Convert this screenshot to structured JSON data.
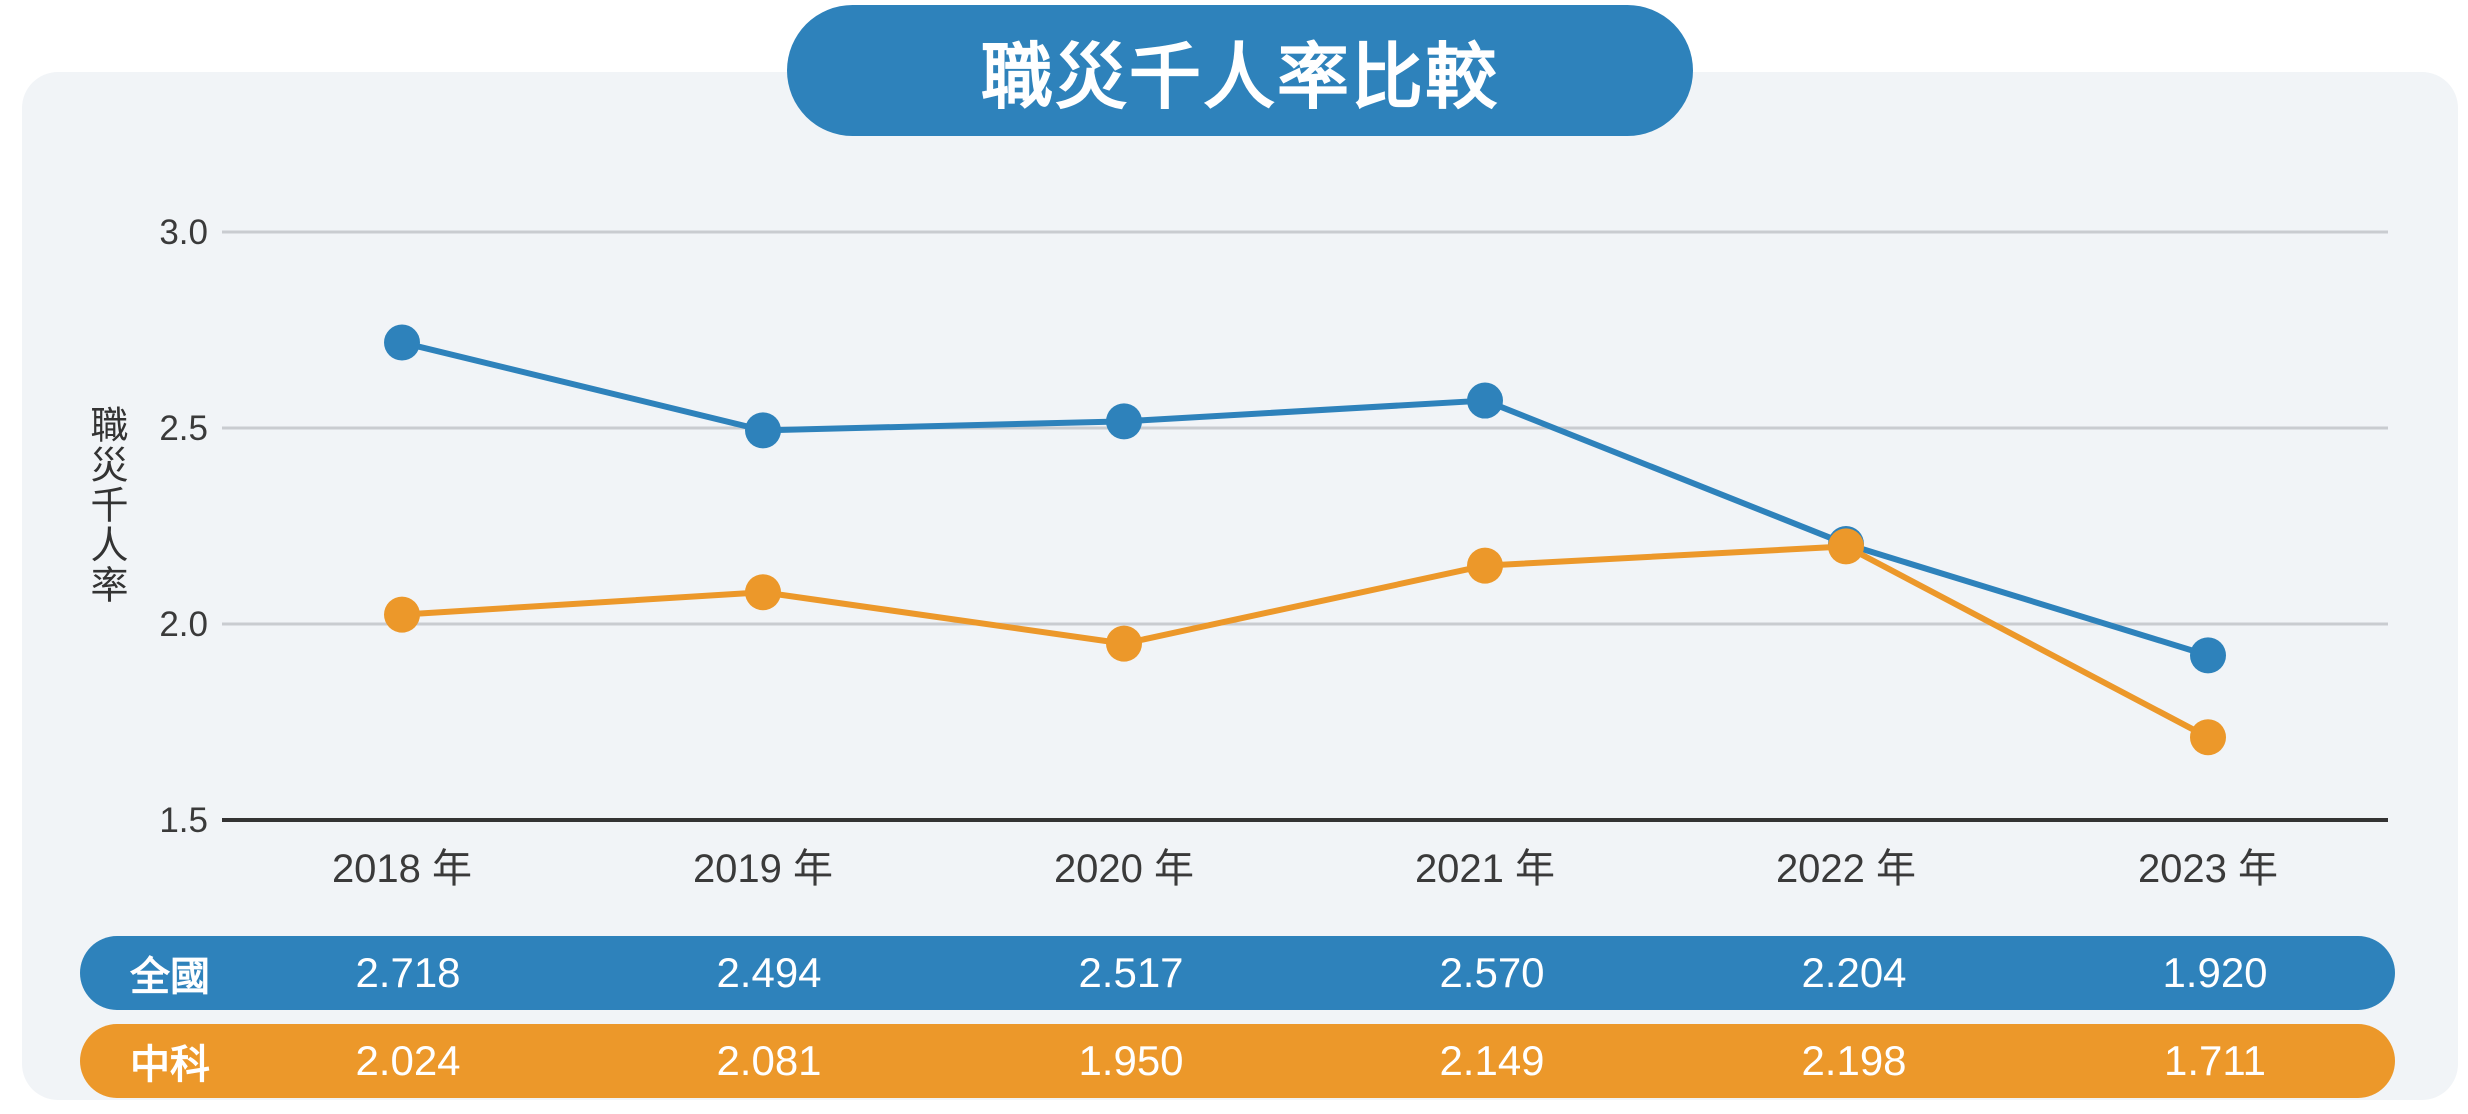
{
  "title": "職災千人率比較",
  "colors": {
    "national": "#2e82bb",
    "central": "#ec982a",
    "axis": "#333333",
    "grid": "#c9ccd0",
    "panel": "#f1f4f7"
  },
  "chart_data": {
    "type": "line",
    "title": "職災千人率比較",
    "ylabel": "職災千人率",
    "xlabel": "",
    "ylim": [
      1.5,
      3.0
    ],
    "yticks": [
      "1.5",
      "2.0",
      "2.5",
      "3.0"
    ],
    "categories": [
      "2018 年",
      "2019 年",
      "2020 年",
      "2021 年",
      "2022 年",
      "2023 年"
    ],
    "series": [
      {
        "name": "全國",
        "values": [
          2.718,
          2.494,
          2.517,
          2.57,
          2.204,
          1.92
        ],
        "labels": [
          "2.718",
          "2.494",
          "2.517",
          "2.570",
          "2.204",
          "1.920"
        ]
      },
      {
        "name": "中科",
        "values": [
          2.024,
          2.081,
          1.95,
          2.149,
          2.198,
          1.711
        ],
        "labels": [
          "2.024",
          "2.081",
          "1.950",
          "2.149",
          "2.198",
          "1.711"
        ]
      }
    ],
    "grid": true
  }
}
